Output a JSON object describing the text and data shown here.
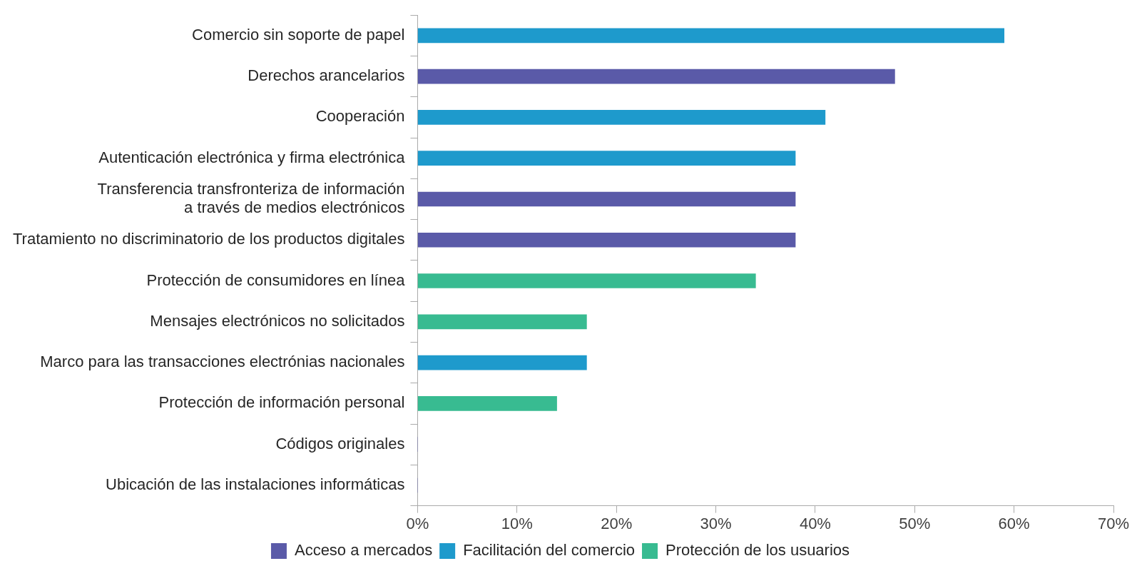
{
  "chart_data": {
    "type": "bar",
    "orientation": "horizontal",
    "categories": [
      "Comercio sin soporte de papel",
      "Derechos arancelarios",
      "Cooperación",
      "Autenticación electrónica y firma electrónica",
      "Transferencia transfronteriza de información\na través de medios electrónicos",
      "Tratamiento no discriminatorio de los productos digitales",
      "Protección de consumidores en línea",
      "Mensajes electrónicos no solicitados",
      "Marco para las transacciones electrónias nacionales",
      "Protección de información personal",
      "Códigos originales",
      "Ubicación de las instalaciones informáticas"
    ],
    "series": [
      {
        "name": "Acceso a mercados",
        "color": "#5a5aa8",
        "values": [
          null,
          48,
          null,
          null,
          38,
          38,
          null,
          null,
          null,
          null,
          0,
          0
        ]
      },
      {
        "name": "Facilitación del comercio",
        "color": "#1e9acc",
        "values": [
          59,
          null,
          41,
          38,
          null,
          null,
          null,
          null,
          17,
          null,
          null,
          null
        ]
      },
      {
        "name": "Protección de los usuarios",
        "color": "#38bb91",
        "values": [
          null,
          null,
          null,
          null,
          null,
          null,
          34,
          17,
          null,
          14,
          null,
          null
        ]
      }
    ],
    "xlim": [
      0,
      70
    ],
    "xticks": [
      {
        "value": 0,
        "label": "0%"
      },
      {
        "value": 10,
        "label": "10%"
      },
      {
        "value": 20,
        "label": "20%"
      },
      {
        "value": 30,
        "label": "30%"
      },
      {
        "value": 40,
        "label": "40%"
      },
      {
        "value": 50,
        "label": "50%"
      },
      {
        "value": 60,
        "label": "60%"
      },
      {
        "value": 70,
        "label": "70%"
      }
    ],
    "grid": false,
    "legend": "bottom"
  }
}
